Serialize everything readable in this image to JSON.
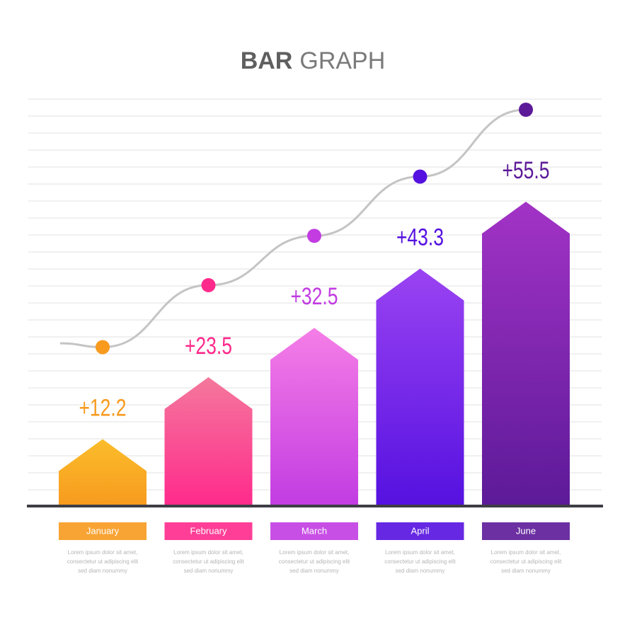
{
  "chart_data": {
    "type": "bar",
    "title": [
      "BAR",
      "GRAPH"
    ],
    "categories": [
      "January",
      "February",
      "March",
      "April",
      "June"
    ],
    "values": [
      12.2,
      23.5,
      32.5,
      43.3,
      55.5
    ],
    "value_labels": [
      "+12.2",
      "+23.5",
      "+32.5",
      "+43.3",
      "+55.5"
    ],
    "colors": [
      [
        "#fbbd2b",
        "#f79a1e"
      ],
      [
        "#f4789c",
        "#ff2a8c"
      ],
      [
        "#f57ee6",
        "#c23ce2"
      ],
      [
        "#9a43f2",
        "#5511e0"
      ],
      [
        "#a233c6",
        "#5c1a98"
      ]
    ],
    "descriptions": [
      [
        "Lorem ipsum dolor sit amet,",
        "consectetur ut adipiscing elit",
        "sed diam nonummy"
      ],
      [
        "Lorem ipsum dolor sit amet,",
        "consectetur ut adipiscing elit",
        "sed diam nonummy"
      ],
      [
        "Lorem ipsum dolor sit amet,",
        "consectetur ut adipiscing elit",
        "sed diam nonummy"
      ],
      [
        "Lorem ipsum dolor sit amet,",
        "consectetur ut adipiscing elit",
        "sed diam nonummy"
      ],
      [
        "Lorem ipsum dolor sit amet,",
        "consectetur ut adipiscing elit",
        "sed diam nonummy"
      ]
    ],
    "grid": true,
    "trend_line": true
  }
}
